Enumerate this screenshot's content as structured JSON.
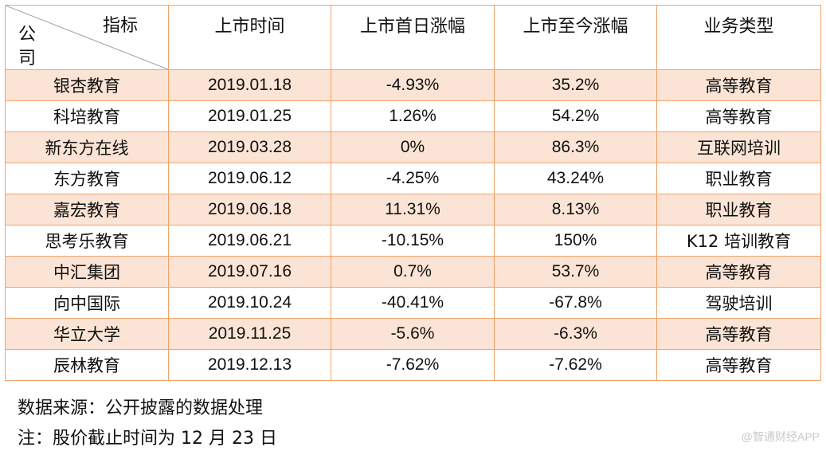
{
  "table": {
    "corner_top": "指标",
    "corner_bottom": "公司",
    "headers": [
      "上市时间",
      "上市首日涨幅",
      "上市至今涨幅",
      "业务类型"
    ],
    "rows": [
      {
        "company": "银杏教育",
        "date": "2019.01.18",
        "first_day": "-4.93%",
        "to_date": "35.2%",
        "business": "高等教育"
      },
      {
        "company": "科培教育",
        "date": "2019.01.25",
        "first_day": "1.26%",
        "to_date": "54.2%",
        "business": "高等教育"
      },
      {
        "company": "新东方在线",
        "date": "2019.03.28",
        "first_day": "0%",
        "to_date": "86.3%",
        "business": "互联网培训"
      },
      {
        "company": "东方教育",
        "date": "2019.06.12",
        "first_day": "-4.25%",
        "to_date": "43.24%",
        "business": "职业教育"
      },
      {
        "company": "嘉宏教育",
        "date": "2019.06.18",
        "first_day": "11.31%",
        "to_date": "8.13%",
        "business": "职业教育"
      },
      {
        "company": "思考乐教育",
        "date": "2019.06.21",
        "first_day": "-10.15%",
        "to_date": "150%",
        "business": "K12 培训教育"
      },
      {
        "company": "中汇集团",
        "date": "2019.07.16",
        "first_day": "0.7%",
        "to_date": "53.7%",
        "business": "高等教育"
      },
      {
        "company": "向中国际",
        "date": "2019.10.24",
        "first_day": "-40.41%",
        "to_date": "-67.8%",
        "business": "驾驶培训"
      },
      {
        "company": "华立大学",
        "date": "2019.11.25",
        "first_day": "-5.6%",
        "to_date": "-6.3%",
        "business": "高等教育"
      },
      {
        "company": "辰林教育",
        "date": "2019.12.13",
        "first_day": "-7.62%",
        "to_date": "-7.62%",
        "business": "高等教育"
      }
    ],
    "border_color": "#f0a36a",
    "shade_color": "#fbe4d5"
  },
  "notes": {
    "source": "数据来源：公开披露的数据处理",
    "cutoff": "注：股价截止时间为 12 月 23 日"
  },
  "watermark": "@智通财经APP"
}
